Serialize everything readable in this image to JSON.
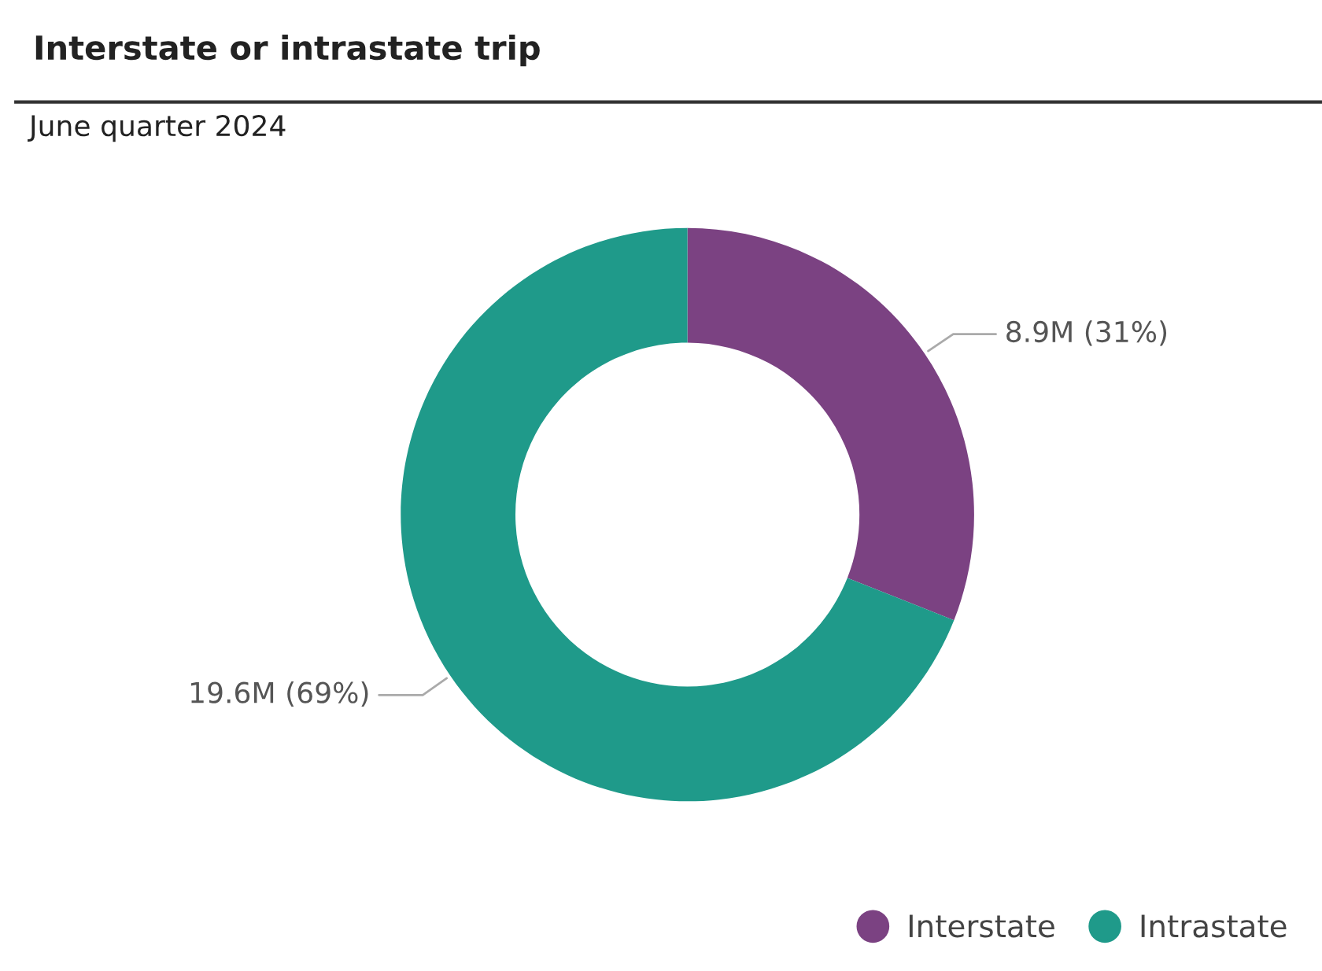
{
  "chart_data": {
    "type": "donut",
    "title": "Interstate or intrastate trip",
    "subtitle": "June quarter 2024",
    "categories": [
      "Interstate",
      "Intrastate"
    ],
    "values": [
      31,
      69
    ],
    "value_labels": [
      "8.9M (31%)",
      "19.6M (69%)"
    ],
    "colors": [
      "#7b4282",
      "#1f9a8a"
    ],
    "legend": "bottom right",
    "marker": "circle"
  }
}
